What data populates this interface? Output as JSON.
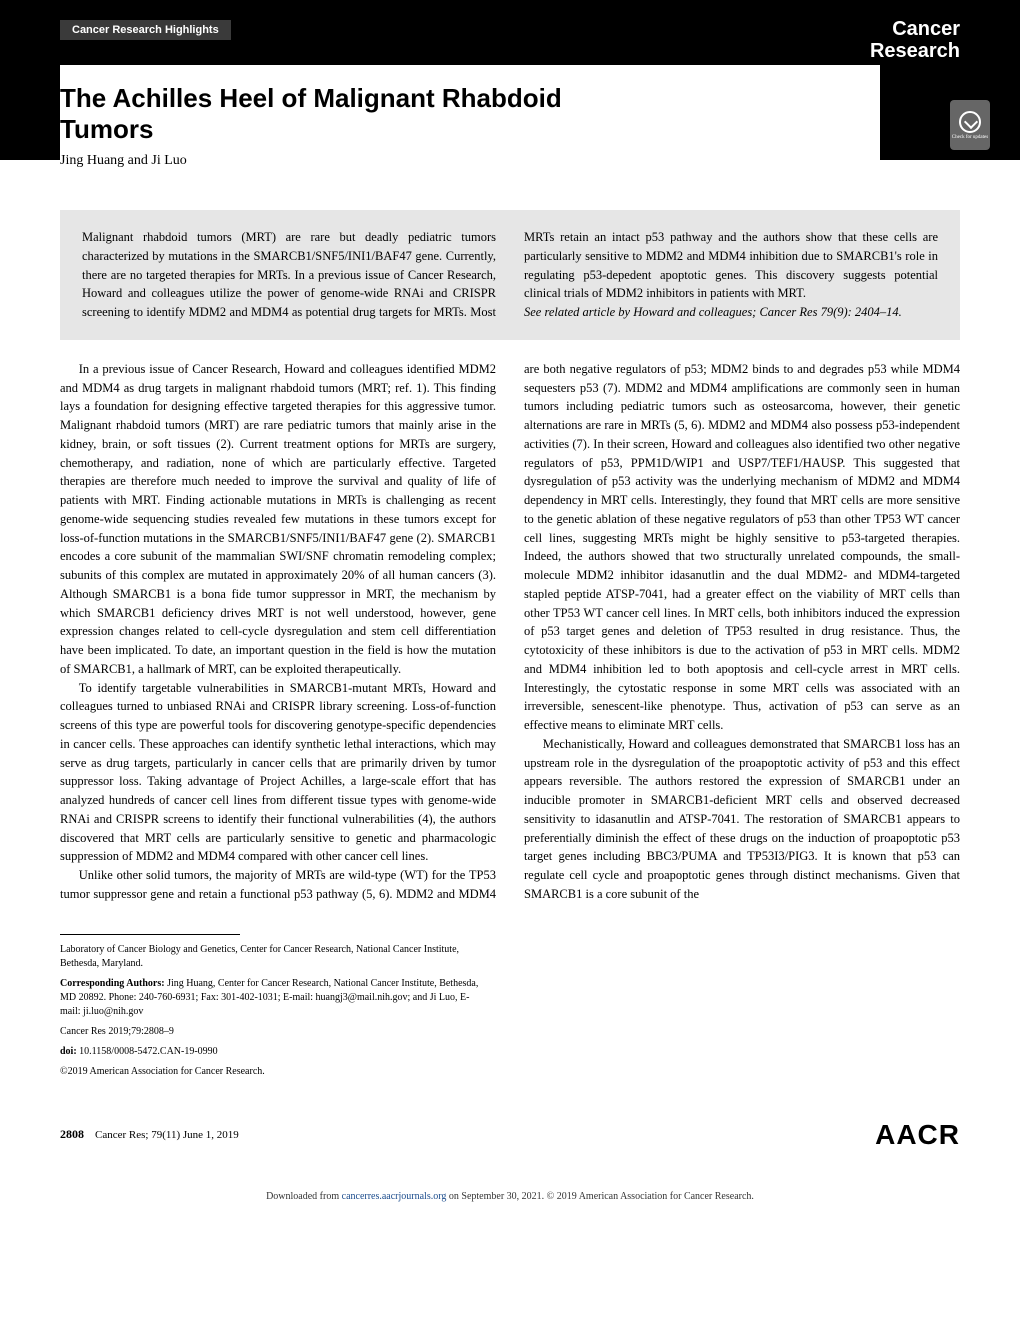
{
  "journal": {
    "section_label": "Cancer Research Highlights",
    "brand_line1": "Cancer",
    "brand_line2": "Research"
  },
  "article": {
    "title": "The Achilles Heel of Malignant Rhabdoid Tumors",
    "authors": "Jing Huang and Ji Luo"
  },
  "check_updates": {
    "label": "Check for updates"
  },
  "abstract": {
    "text": "Malignant rhabdoid tumors (MRT) are rare but deadly pediatric tumors characterized by mutations in the SMARCB1/SNF5/INI1/BAF47 gene. Currently, there are no targeted therapies for MRTs. In a previous issue of Cancer Research, Howard and colleagues utilize the power of genome-wide RNAi and CRISPR screening to identify MDM2 and MDM4 as potential drug targets for MRTs. Most MRTs retain an intact p53 pathway and the authors show that these cells are particularly sensitive to MDM2 and MDM4 inhibition due to SMARCB1's role in regulating p53-depedent apoptotic genes. This discovery suggests potential clinical trials of MDM2 inhibitors in patients with MRT.",
    "see_related": "See related article by Howard and colleagues; Cancer Res 79(9): 2404–14."
  },
  "body": {
    "p1": "In a previous issue of Cancer Research, Howard and colleagues identified MDM2 and MDM4 as drug targets in malignant rhabdoid tumors (MRT; ref. 1). This finding lays a foundation for designing effective targeted therapies for this aggressive tumor. Malignant rhabdoid tumors (MRT) are rare pediatric tumors that mainly arise in the kidney, brain, or soft tissues (2). Current treatment options for MRTs are surgery, chemotherapy, and radiation, none of which are particularly effective. Targeted therapies are therefore much needed to improve the survival and quality of life of patients with MRT. Finding actionable mutations in MRTs is challenging as recent genome-wide sequencing studies revealed few mutations in these tumors except for loss-of-function mutations in the SMARCB1/SNF5/INI1/BAF47 gene (2). SMARCB1 encodes a core subunit of the mammalian SWI/SNF chromatin remodeling complex; subunits of this complex are mutated in approximately 20% of all human cancers (3). Although SMARCB1 is a bona fide tumor suppressor in MRT, the mechanism by which SMARCB1 deficiency drives MRT is not well understood, however, gene expression changes related to cell-cycle dysregulation and stem cell differentiation have been implicated. To date, an important question in the field is how the mutation of SMARCB1, a hallmark of MRT, can be exploited therapeutically.",
    "p2": "To identify targetable vulnerabilities in SMARCB1-mutant MRTs, Howard and colleagues turned to unbiased RNAi and CRISPR library screening. Loss-of-function screens of this type are powerful tools for discovering genotype-specific dependencies in cancer cells. These approaches can identify synthetic lethal interactions, which may serve as drug targets, particularly in cancer cells that are primarily driven by tumor suppressor loss. Taking advantage of Project Achilles, a large-scale effort that has analyzed hundreds of cancer cell lines from different tissue types with genome-wide RNAi and CRISPR screens to identify their functional vulnerabilities (4), the authors discovered that MRT cells are particularly sensitive to genetic and pharmacologic suppression of MDM2 and MDM4 compared with other cancer cell lines.",
    "p3": "Unlike other solid tumors, the majority of MRTs are wild-type (WT) for the TP53 tumor suppressor gene and retain a functional p53 pathway (5, 6). MDM2 and MDM4 are both negative regulators of p53; MDM2 binds to and degrades p53 while MDM4 sequesters p53 (7). MDM2 and MDM4 amplifications are commonly seen in human tumors including pediatric tumors such as osteosarcoma, however, their genetic alternations are rare in MRTs (5, 6). MDM2 and MDM4 also possess p53-independent activities (7). In their screen, Howard and colleagues also identified two other negative regulators of p53, PPM1D/WIP1 and USP7/TEF1/HAUSP. This suggested that dysregulation of p53 activity was the underlying mechanism of MDM2 and MDM4 dependency in MRT cells. Interestingly, they found that MRT cells are more sensitive to the genetic ablation of these negative regulators of p53 than other TP53 WT cancer cell lines, suggesting MRTs might be highly sensitive to p53-targeted therapies. Indeed, the authors showed that two structurally unrelated compounds, the small-molecule MDM2 inhibitor idasanutlin and the dual MDM2- and MDM4-targeted stapled peptide ATSP-7041, had a greater effect on the viability of MRT cells than other TP53 WT cancer cell lines. In MRT cells, both inhibitors induced the expression of p53 target genes and deletion of TP53 resulted in drug resistance. Thus, the cytotoxicity of these inhibitors is due to the activation of p53 in MRT cells. MDM2 and MDM4 inhibition led to both apoptosis and cell-cycle arrest in MRT cells. Interestingly, the cytostatic response in some MRT cells was associated with an irreversible, senescent-like phenotype. Thus, activation of p53 can serve as an effective means to eliminate MRT cells.",
    "p4": "Mechanistically, Howard and colleagues demonstrated that SMARCB1 loss has an upstream role in the dysregulation of the proapoptotic activity of p53 and this effect appears reversible. The authors restored the expression of SMARCB1 under an inducible promoter in SMARCB1-deficient MRT cells and observed decreased sensitivity to idasanutlin and ATSP-7041. The restoration of SMARCB1 appears to preferentially diminish the effect of these drugs on the induction of proapoptotic p53 target genes including BBC3/PUMA and TP53I3/PIG3. It is known that p53 can regulate cell cycle and proapoptotic genes through distinct mechanisms. Given that SMARCB1 is a core subunit of the"
  },
  "footer_info": {
    "affiliation": "Laboratory of Cancer Biology and Genetics, Center for Cancer Research, National Cancer Institute, Bethesda, Maryland.",
    "corresponding_label": "Corresponding Authors:",
    "corresponding_text": " Jing Huang, Center for Cancer Research, National Cancer Institute, Bethesda, MD 20892. Phone: 240-760-6931; Fax: 301-402-1031; E-mail: huangj3@mail.nih.gov; and Ji Luo, E-mail: ji.luo@nih.gov",
    "citation": "Cancer Res 2019;79:2808–9",
    "doi_label": "doi:",
    "doi": " 10.1158/0008-5472.CAN-19-0990",
    "copyright": "©2019 American Association for Cancer Research."
  },
  "page_footer": {
    "page_num": "2808",
    "citation": "Cancer Res; 79(11) June 1, 2019",
    "logo": "AACR"
  },
  "download_bar": {
    "prefix": "Downloaded from ",
    "link_text": "cancerres.aacrjournals.org",
    "suffix": " on September 30, 2021. © 2019 American Association for Cancer Research."
  },
  "colors": {
    "black": "#000000",
    "section_bg": "#3a3a3a",
    "abstract_bg": "#e6e6e6",
    "link": "#1a4b8c",
    "badge_bg": "#666666"
  },
  "typography": {
    "title_fontsize": 26,
    "body_fontsize": 12.5,
    "abstract_fontsize": 12.5,
    "footer_fontsize": 10,
    "brand_fontsize": 20,
    "logo_fontsize": 28
  }
}
